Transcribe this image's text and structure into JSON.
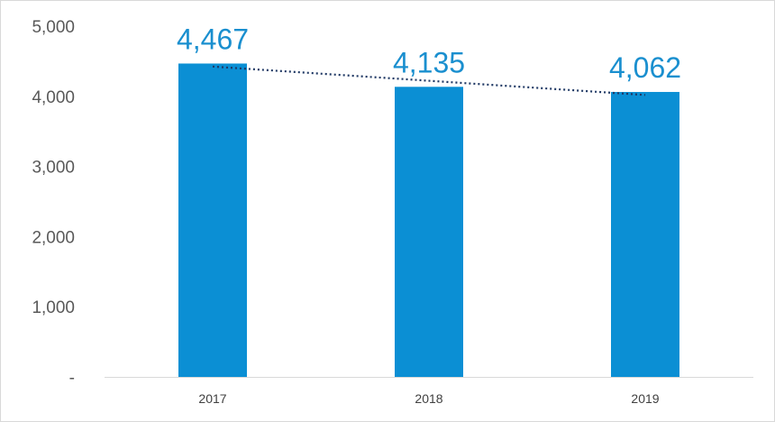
{
  "chart_data": {
    "type": "bar",
    "categories": [
      "2017",
      "2018",
      "2019"
    ],
    "values": [
      4467,
      4135,
      4062
    ],
    "data_labels": [
      "4,467",
      "4,135",
      "4,062"
    ],
    "y_tick_labels": [
      "-",
      "1,000",
      "2,000",
      "3,000",
      "4,000",
      "5,000"
    ],
    "y_ticks": [
      0,
      1000,
      2000,
      3000,
      4000,
      5000
    ],
    "ylim": [
      0,
      5000
    ],
    "trendline": {
      "type": "linear",
      "style": "dotted"
    },
    "grid": false,
    "legend": "none",
    "colors": {
      "bar": "#0b8fd4",
      "label": "#1a8fcf",
      "trendline": "#1f3864",
      "axis": "#d9d9d9"
    }
  }
}
